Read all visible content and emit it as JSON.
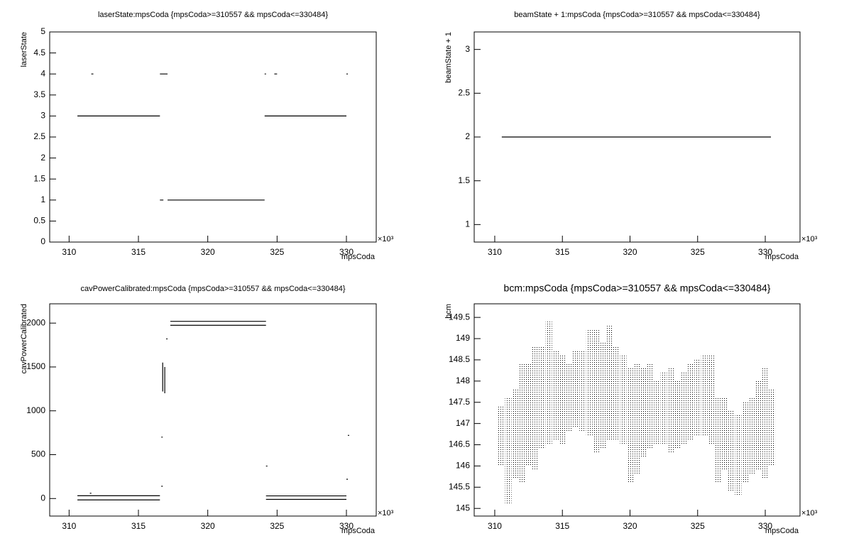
{
  "chart_data": [
    {
      "type": "line",
      "title": "laserState:mpsCoda {mpsCoda>=310557 && mpsCoda<=330484}",
      "x_label": "mpsCoda",
      "y_label": "laserState",
      "x_scale_label": "×10³",
      "color": "#000000",
      "xlim": [
        308.6,
        332.15
      ],
      "xticks": [
        310,
        315,
        320,
        325,
        330
      ],
      "ylim": [
        0,
        5
      ],
      "yticks": [
        0,
        0.5,
        1,
        1.5,
        2,
        2.5,
        3,
        3.5,
        4,
        4.5,
        5
      ],
      "x": [
        310.6,
        316.55,
        null,
        311.6,
        311.75,
        null,
        316.55,
        317.1,
        null,
        316.55,
        316.8,
        null,
        317.1,
        324.1,
        null,
        324.1,
        330.0,
        null,
        324.1,
        null,
        324.8,
        325.0,
        null,
        330.0
      ],
      "values": [
        3,
        3,
        null,
        4,
        4,
        null,
        4,
        4,
        null,
        1,
        1,
        null,
        1,
        1,
        null,
        3,
        3,
        null,
        4,
        null,
        4,
        4,
        null,
        4
      ]
    },
    {
      "type": "line",
      "title": "beamState + 1:mpsCoda {mpsCoda>=310557 && mpsCoda<=330484}",
      "x_label": "mpsCoda",
      "y_label": "beamState + 1",
      "x_scale_label": "×10³",
      "color": "#000000",
      "xlim": [
        308.48,
        332.57
      ],
      "xticks": [
        310,
        315,
        320,
        325,
        330
      ],
      "ylim": [
        0.8,
        3.2
      ],
      "yticks": [
        1,
        1.5,
        2,
        2.5,
        3
      ],
      "x": [
        310.52,
        330.42
      ],
      "values": [
        2,
        2
      ]
    },
    {
      "type": "line",
      "title": "cavPowerCalibrated:mpsCoda {mpsCoda>=310557 && mpsCoda<=330484}",
      "x_label": "mpsCoda",
      "y_label": "cavPowerCalibrated",
      "x_scale_label": "×10³",
      "color": "#000000",
      "xlim": [
        308.6,
        332.15
      ],
      "xticks": [
        310,
        315,
        320,
        325,
        330
      ],
      "ylim": [
        -200,
        2220
      ],
      "yticks": [
        0,
        500,
        1000,
        1500,
        2000
      ],
      "x": [
        310.6,
        316.55,
        null,
        310.6,
        316.55,
        null,
        311.5,
        null,
        316.65,
        null,
        316.65,
        null,
        316.75,
        316.75,
        null,
        316.9,
        316.9,
        null,
        317.0,
        null,
        317.3,
        324.2,
        null,
        317.3,
        324.2,
        null,
        324.2,
        null,
        324.2,
        330.0,
        null,
        324.2,
        330.0,
        null,
        330.0,
        null,
        330.1
      ],
      "values": [
        32,
        32,
        null,
        -16,
        -16,
        null,
        60,
        null,
        700,
        null,
        140,
        null,
        1550,
        1220,
        null,
        1500,
        1200,
        null,
        1820,
        null,
        2020,
        2020,
        null,
        1975,
        1975,
        null,
        370,
        null,
        30,
        30,
        null,
        -10,
        -10,
        null,
        220,
        null,
        720
      ]
    },
    {
      "type": "range",
      "title": "bcm:mpsCoda {mpsCoda>=310557 && mpsCoda<=330484}",
      "x_label": "mpsCoda",
      "y_label": "bcm",
      "x_scale_label": "×10³",
      "color": "#000000",
      "xlim": [
        308.48,
        332.57
      ],
      "xticks": [
        310,
        315,
        320,
        325,
        330
      ],
      "ylim": [
        144.82,
        149.82
      ],
      "yticks": [
        145,
        145.5,
        146,
        146.5,
        147,
        147.5,
        148,
        148.5,
        149,
        149.5
      ],
      "x": [
        310.5,
        311,
        311.5,
        312,
        312.5,
        313,
        313.5,
        314,
        314.5,
        315,
        315.5,
        316,
        316.5,
        317,
        317.5,
        318,
        318.5,
        319,
        319.5,
        320,
        320.5,
        321,
        321.5,
        322,
        322.5,
        323,
        323.5,
        324,
        324.5,
        325,
        325.5,
        326,
        326.5,
        327,
        327.5,
        328,
        328.5,
        329,
        329.5,
        330,
        330.5
      ],
      "low": [
        146.0,
        145.1,
        145.7,
        145.6,
        146.0,
        145.9,
        146.4,
        146.5,
        146.6,
        146.5,
        146.8,
        146.9,
        146.8,
        146.7,
        146.3,
        146.4,
        146.6,
        146.6,
        146.5,
        145.6,
        145.8,
        146.2,
        146.4,
        146.5,
        146.5,
        146.3,
        146.4,
        146.5,
        146.6,
        146.7,
        146.7,
        146.5,
        145.6,
        145.9,
        145.4,
        145.3,
        145.6,
        145.8,
        145.9,
        145.7,
        146.0
      ],
      "high": [
        147.4,
        147.6,
        147.8,
        148.4,
        148.4,
        148.8,
        148.8,
        149.4,
        148.7,
        148.6,
        148.4,
        148.7,
        148.7,
        149.2,
        149.2,
        148.9,
        149.3,
        148.8,
        148.6,
        148.3,
        148.4,
        148.3,
        148.4,
        148.0,
        148.2,
        148.3,
        148.0,
        148.2,
        148.4,
        148.5,
        148.6,
        148.6,
        147.6,
        147.6,
        147.3,
        147.2,
        147.5,
        147.6,
        148.0,
        148.3,
        147.8
      ]
    }
  ]
}
